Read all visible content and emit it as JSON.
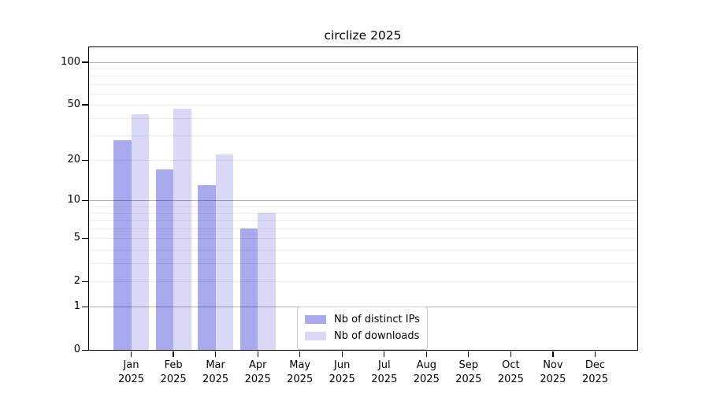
{
  "chart_data": {
    "type": "bar",
    "title": "circlize 2025",
    "categories": [
      "Jan 2025",
      "Feb 2025",
      "Mar 2025",
      "Apr 2025",
      "May 2025",
      "Jun 2025",
      "Jul 2025",
      "Aug 2025",
      "Sep 2025",
      "Oct 2025",
      "Nov 2025",
      "Dec 2025"
    ],
    "series": [
      {
        "name": "Nb of distinct IPs",
        "color": "#a9a9ee",
        "values": [
          28,
          17,
          13,
          6,
          null,
          null,
          null,
          null,
          null,
          null,
          null,
          null
        ]
      },
      {
        "name": "Nb of downloads",
        "color": "#d9d9f7",
        "values": [
          43,
          47,
          22,
          8,
          null,
          null,
          null,
          null,
          null,
          null,
          null,
          null
        ]
      }
    ],
    "xlabel": "",
    "ylabel": "",
    "yscale": "log1p",
    "ylim": [
      0,
      127
    ],
    "yticks": [
      0,
      1,
      2,
      5,
      10,
      20,
      50,
      100
    ],
    "y_major_gridlines": [
      1,
      10,
      100
    ],
    "y_minor_gridlines": [
      2,
      3,
      4,
      5,
      6,
      7,
      8,
      9,
      20,
      30,
      40,
      50,
      60,
      70,
      80,
      90
    ],
    "grid": "on",
    "legend_position": "inside lower-center"
  },
  "colors": {
    "background": "#ffffff",
    "axis": "#000000",
    "major_grid": "#b3b3b3",
    "minor_grid": "#ececec",
    "legend_border": "#cccccc"
  }
}
